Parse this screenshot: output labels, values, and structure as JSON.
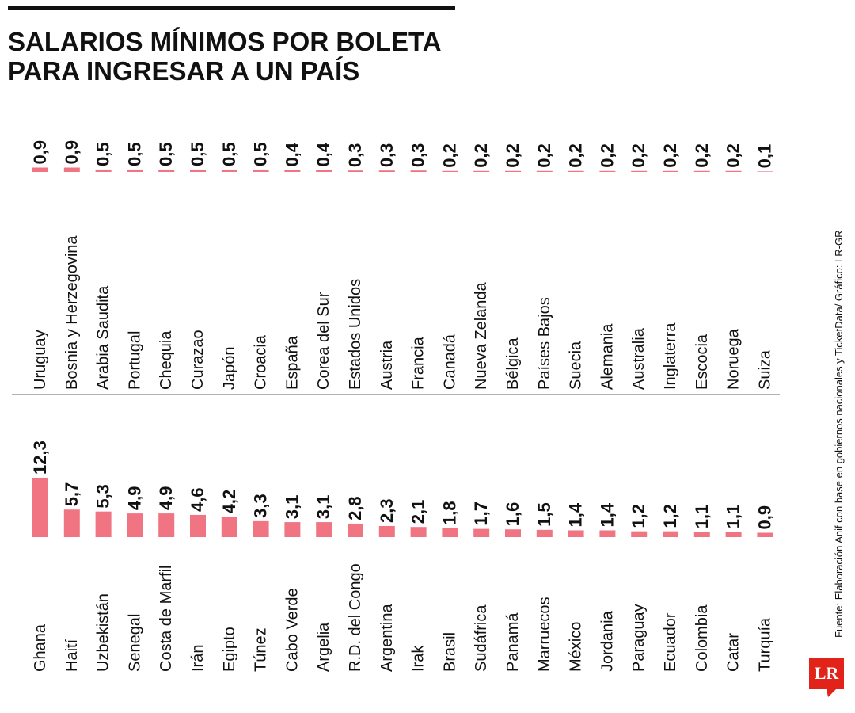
{
  "header": {
    "title_lines": [
      "SALARIOS MÍNIMOS POR BOLETA",
      "PARA INGRESAR A UN PAÍS"
    ]
  },
  "chart_data": [
    {
      "type": "bar",
      "color": "#f07482",
      "ylim": [
        0,
        13
      ],
      "categories": [
        "Uruguay",
        "Bosnia y Herzegovina",
        "Arabia Saudita",
        "Portugal",
        "Chequia",
        "Curazao",
        "Japón",
        "Croacia",
        "España",
        "Corea del Sur",
        "Estados Unidos",
        "Austria",
        "Francia",
        "Canadá",
        "Nueva Zelanda",
        "Bélgica",
        "Países Bajos",
        "Suecia",
        "Alemania",
        "Australia",
        "Inglaterra",
        "Escocia",
        "Noruega",
        "Suiza"
      ],
      "values": [
        0.9,
        0.9,
        0.5,
        0.5,
        0.5,
        0.5,
        0.5,
        0.5,
        0.4,
        0.4,
        0.3,
        0.3,
        0.3,
        0.2,
        0.2,
        0.2,
        0.2,
        0.2,
        0.2,
        0.2,
        0.2,
        0.2,
        0.2,
        0.1
      ],
      "value_labels": [
        "0,9",
        "0,9",
        "0,5",
        "0,5",
        "0,5",
        "0,5",
        "0,5",
        "0,5",
        "0,4",
        "0,4",
        "0,3",
        "0,3",
        "0,3",
        "0,2",
        "0,2",
        "0,2",
        "0,2",
        "0,2",
        "0,2",
        "0,2",
        "0,2",
        "0,2",
        "0,2",
        "0,1"
      ]
    },
    {
      "type": "bar",
      "color": "#f07482",
      "ylim": [
        0,
        13
      ],
      "categories": [
        "Ghana",
        "Haití",
        "Uzbekistán",
        "Senegal",
        "Costa de Marfil",
        "Irán",
        "Egipto",
        "Túnez",
        "Cabo Verde",
        "Argelia",
        "R.D. del Congo",
        "Argentina",
        "Irak",
        "Brasil",
        "Sudáfrica",
        "Panamá",
        "Marruecos",
        "México",
        "Jordania",
        "Paraguay",
        "Ecuador",
        "Colombia",
        "Catar",
        "Turquía"
      ],
      "values": [
        12.3,
        5.7,
        5.3,
        4.9,
        4.9,
        4.6,
        4.2,
        3.3,
        3.1,
        3.1,
        2.8,
        2.3,
        2.1,
        1.8,
        1.7,
        1.6,
        1.5,
        1.4,
        1.4,
        1.2,
        1.2,
        1.1,
        1.1,
        0.9
      ],
      "value_labels": [
        "12,3",
        "5,7",
        "5,3",
        "4,9",
        "4,9",
        "4,6",
        "4,2",
        "3,3",
        "3,1",
        "3,1",
        "2,8",
        "2,3",
        "2,1",
        "1,8",
        "1,7",
        "1,6",
        "1,5",
        "1,4",
        "1,4",
        "1,2",
        "1,2",
        "1,1",
        "1,1",
        "0,9"
      ]
    }
  ],
  "source": "Fuente: Elaboración Anif con base en gobiernos nacionales y TicketData/ Gráfico: LR-GR",
  "logo": "LR"
}
